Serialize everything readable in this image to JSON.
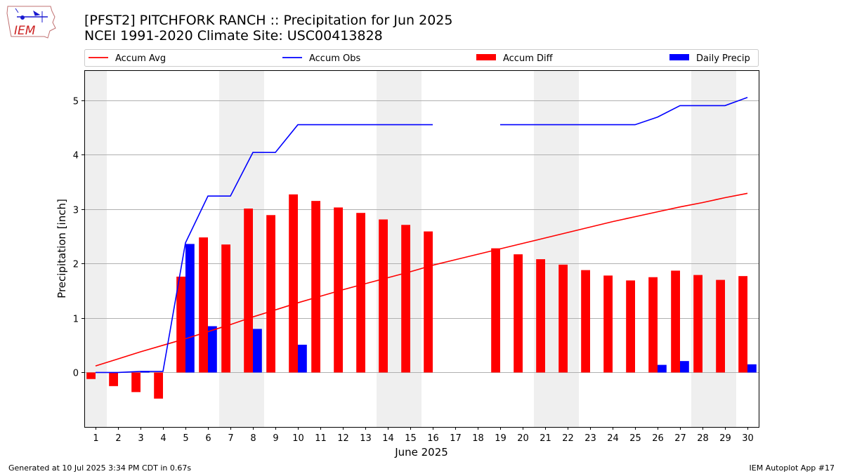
{
  "logo": {
    "text": "IEM",
    "icon": "iowa-state-outline-icon"
  },
  "header": {
    "title_line1": "[PFST2] PITCHFORK RANCH :: Precipitation for Jun 2025",
    "title_line2": "NCEI 1991-2020 Climate Site: USC00413828"
  },
  "footer": {
    "generated": "Generated at 10 Jul 2025 3:34 PM CDT in 0.67s",
    "app": "IEM Autoplot App #17"
  },
  "chart_data": {
    "type": "bar",
    "xlabel": "June 2025",
    "ylabel": "Precipitation [inch]",
    "ylim": [
      -1.0,
      5.55
    ],
    "yticks": [
      0,
      1,
      2,
      3,
      4,
      5
    ],
    "grid": true,
    "legend_position": "top",
    "x": [
      1,
      2,
      3,
      4,
      5,
      6,
      7,
      8,
      9,
      10,
      11,
      12,
      13,
      14,
      15,
      16,
      17,
      18,
      19,
      20,
      21,
      22,
      23,
      24,
      25,
      26,
      27,
      28,
      29,
      30
    ],
    "weekend_shading": [
      [
        1,
        1
      ],
      [
        7,
        8
      ],
      [
        14,
        15
      ],
      [
        21,
        22
      ],
      [
        28,
        29
      ]
    ],
    "series": [
      {
        "name": "Accum Avg",
        "kind": "line",
        "color": "#ff0000",
        "values": [
          0.12,
          0.25,
          0.38,
          0.5,
          0.62,
          0.75,
          0.88,
          1.02,
          1.15,
          1.28,
          1.4,
          1.52,
          1.63,
          1.74,
          1.85,
          1.97,
          2.07,
          2.17,
          2.27,
          2.37,
          2.47,
          2.57,
          2.67,
          2.77,
          2.86,
          2.95,
          3.04,
          3.12,
          3.21,
          3.29
        ]
      },
      {
        "name": "Accum Obs",
        "kind": "line",
        "color": "#0000ff",
        "values": [
          0.0,
          0.0,
          0.02,
          0.02,
          2.38,
          3.24,
          3.24,
          4.04,
          4.04,
          4.55,
          4.55,
          4.55,
          4.55,
          4.55,
          4.55,
          4.55,
          null,
          null,
          4.55,
          4.55,
          4.55,
          4.55,
          4.55,
          4.55,
          4.55,
          4.69,
          4.9,
          4.9,
          4.9,
          5.05
        ]
      },
      {
        "name": "Accum Diff",
        "kind": "bar",
        "color": "#ff0000",
        "values": [
          -0.12,
          -0.25,
          -0.36,
          -0.48,
          1.76,
          2.48,
          2.35,
          3.01,
          2.89,
          3.27,
          3.15,
          3.03,
          2.93,
          2.81,
          2.71,
          2.59,
          null,
          null,
          2.28,
          2.17,
          2.08,
          1.98,
          1.88,
          1.78,
          1.69,
          1.75,
          1.87,
          1.79,
          1.7,
          1.77
        ]
      },
      {
        "name": "Daily Precip",
        "kind": "bar",
        "color": "#0000ff",
        "values": [
          0,
          0,
          0.02,
          0,
          2.36,
          0.85,
          0,
          0.8,
          0,
          0.51,
          0,
          0,
          0,
          0,
          0,
          0,
          null,
          null,
          0,
          0,
          0,
          0,
          0,
          0,
          0,
          0.14,
          0.21,
          0,
          0,
          0.15
        ]
      }
    ]
  }
}
